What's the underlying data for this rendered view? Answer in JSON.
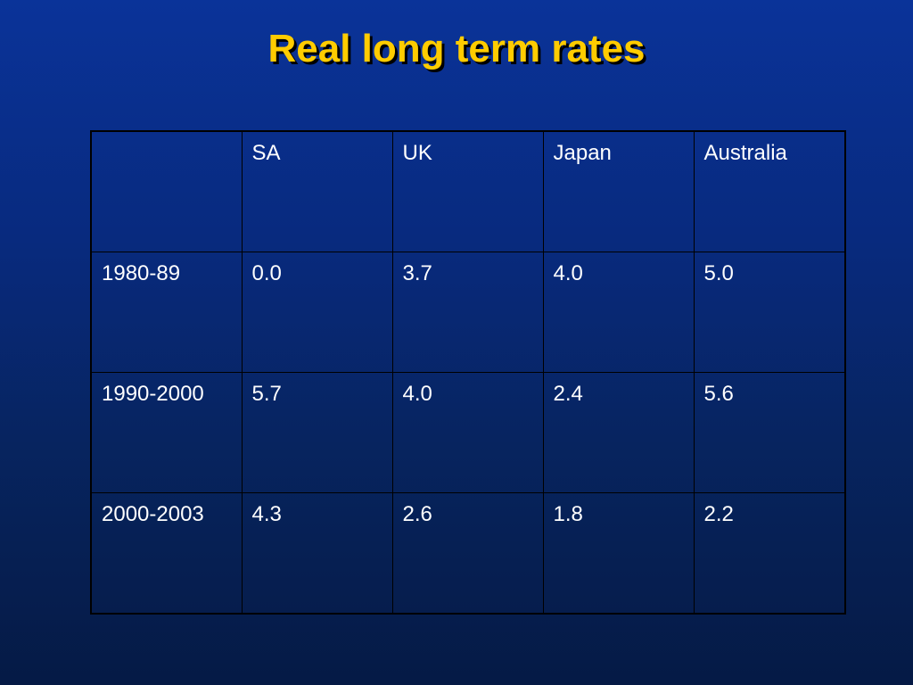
{
  "slide": {
    "title": "Real long term rates"
  },
  "table": {
    "headers": [
      "",
      "SA",
      "UK",
      "Japan",
      "Australia"
    ],
    "rows": [
      {
        "period": "1980-89",
        "values": [
          "0.0",
          "3.7",
          "4.0",
          "5.0"
        ]
      },
      {
        "period": "1990-2000",
        "values": [
          "5.7",
          "4.0",
          "2.4",
          "5.6"
        ]
      },
      {
        "period": "2000-2003",
        "values": [
          "4.3",
          "2.6",
          "1.8",
          "2.2"
        ]
      }
    ]
  },
  "colors": {
    "title": "#ffcc00",
    "text": "#ffffff",
    "background_top": "#0a3399",
    "background_bottom": "#051a45"
  }
}
